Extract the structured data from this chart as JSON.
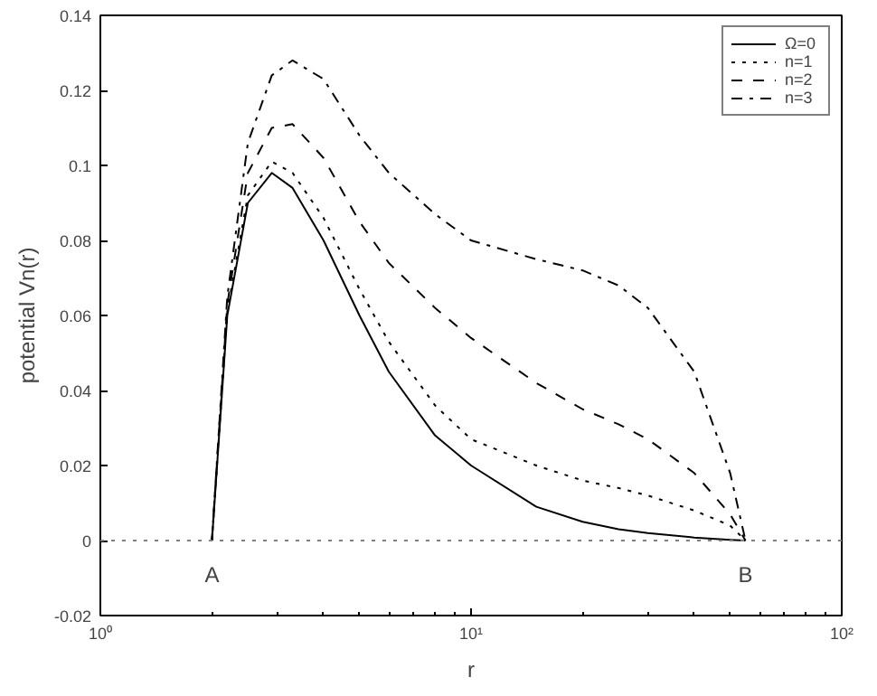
{
  "chart_data": {
    "type": "line",
    "xlabel": "r",
    "ylabel": "potential Vn(r)",
    "log": "x",
    "xlim": [
      1,
      100
    ],
    "xticks": [
      {
        "value": 1,
        "label": "10⁰"
      },
      {
        "value": 10,
        "label": "10¹"
      },
      {
        "value": 100,
        "label": "10²"
      }
    ],
    "ylim": [
      -0.02,
      0.14
    ],
    "yticks": [
      -0.02,
      0,
      0.02,
      0.04,
      0.06,
      0.08,
      0.1,
      0.12,
      0.14
    ],
    "x": [
      2,
      2.2,
      2.5,
      2.9,
      3.3,
      4,
      5,
      6,
      8,
      10,
      15,
      20,
      25,
      30,
      40,
      50,
      55
    ],
    "series": [
      {
        "name": "Ω=0",
        "color": "#000000",
        "line_style": "solid",
        "values": [
          0,
          0.06,
          0.09,
          0.098,
          0.094,
          0.08,
          0.06,
          0.045,
          0.028,
          0.02,
          0.009,
          0.005,
          0.003,
          0.002,
          0.0008,
          0.0002,
          0
        ]
      },
      {
        "name": "n=1",
        "color": "#000000",
        "line_style": "dotted",
        "values": [
          0,
          0.061,
          0.092,
          0.101,
          0.098,
          0.086,
          0.067,
          0.053,
          0.036,
          0.027,
          0.02,
          0.016,
          0.014,
          0.012,
          0.008,
          0.004,
          0
        ]
      },
      {
        "name": "n=2",
        "color": "#000000",
        "line_style": "dashed",
        "values": [
          0,
          0.063,
          0.098,
          0.11,
          0.111,
          0.102,
          0.085,
          0.074,
          0.062,
          0.054,
          0.042,
          0.035,
          0.031,
          0.027,
          0.018,
          0.007,
          0
        ]
      },
      {
        "name": "n=3",
        "color": "#000000",
        "line_style": "dashdot",
        "values": [
          0,
          0.065,
          0.106,
          0.124,
          0.128,
          0.123,
          0.108,
          0.098,
          0.087,
          0.08,
          0.075,
          0.072,
          0.068,
          0.062,
          0.045,
          0.018,
          0
        ]
      }
    ],
    "ref_lines": [
      {
        "axis": "y",
        "value": 0,
        "line_style": "dotted",
        "color": "#808080"
      }
    ],
    "annotations": [
      {
        "text": "A",
        "x": 2,
        "y": 0
      },
      {
        "text": "B",
        "x": 55,
        "y": 0
      }
    ],
    "legend": "top right"
  }
}
